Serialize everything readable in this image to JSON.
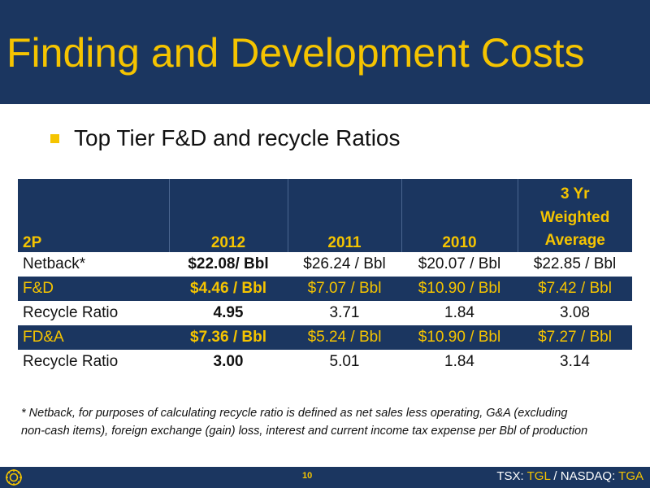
{
  "slide": {
    "title": "Finding and Development Costs",
    "bullet": "Top Tier F&D and recycle Ratios"
  },
  "table": {
    "header_top": [
      "",
      "",
      "",
      "",
      "3 Yr"
    ],
    "header_bottom": {
      "label": "2P",
      "years": [
        "2012",
        "2011",
        "2010"
      ],
      "avg_line1": "Weighted",
      "avg_line2": "Average"
    },
    "rows": [
      {
        "label": "Netback*",
        "values": [
          "$22.08/ Bbl",
          "$26.24 / Bbl",
          "$20.07 / Bbl",
          "$22.85 / Bbl"
        ]
      },
      {
        "label": "F&D",
        "values": [
          "$4.46 / Bbl",
          "$7.07 / Bbl",
          "$10.90 / Bbl",
          "$7.42 / Bbl"
        ]
      },
      {
        "label": "Recycle Ratio",
        "values": [
          "4.95",
          "3.71",
          "1.84",
          "3.08"
        ]
      },
      {
        "label": "FD&A",
        "values": [
          "$7.36 / Bbl",
          "$5.24 / Bbl",
          "$10.90 / Bbl",
          "$7.27 / Bbl"
        ]
      },
      {
        "label": "Recycle Ratio",
        "values": [
          "3.00",
          "5.01",
          "1.84",
          "3.14"
        ]
      }
    ]
  },
  "footnote": {
    "line1": "* Netback, for purposes of calculating recycle ratio is defined as net sales less operating, G&A (excluding",
    "line2": "non-cash items), foreign exchange (gain) loss, interest and current income tax expense per Bbl of production"
  },
  "footer": {
    "page_number": "10",
    "ticker_prefix1": "TSX: ",
    "ticker_sym1": "TGL",
    "ticker_sep": " / NASDAQ: ",
    "ticker_sym2": "TGA"
  },
  "colors": {
    "navy": "#1b3660",
    "gold": "#f5c400"
  },
  "icons": {
    "logo": "sun-logo-icon",
    "bullet": "square-bullet-icon"
  }
}
